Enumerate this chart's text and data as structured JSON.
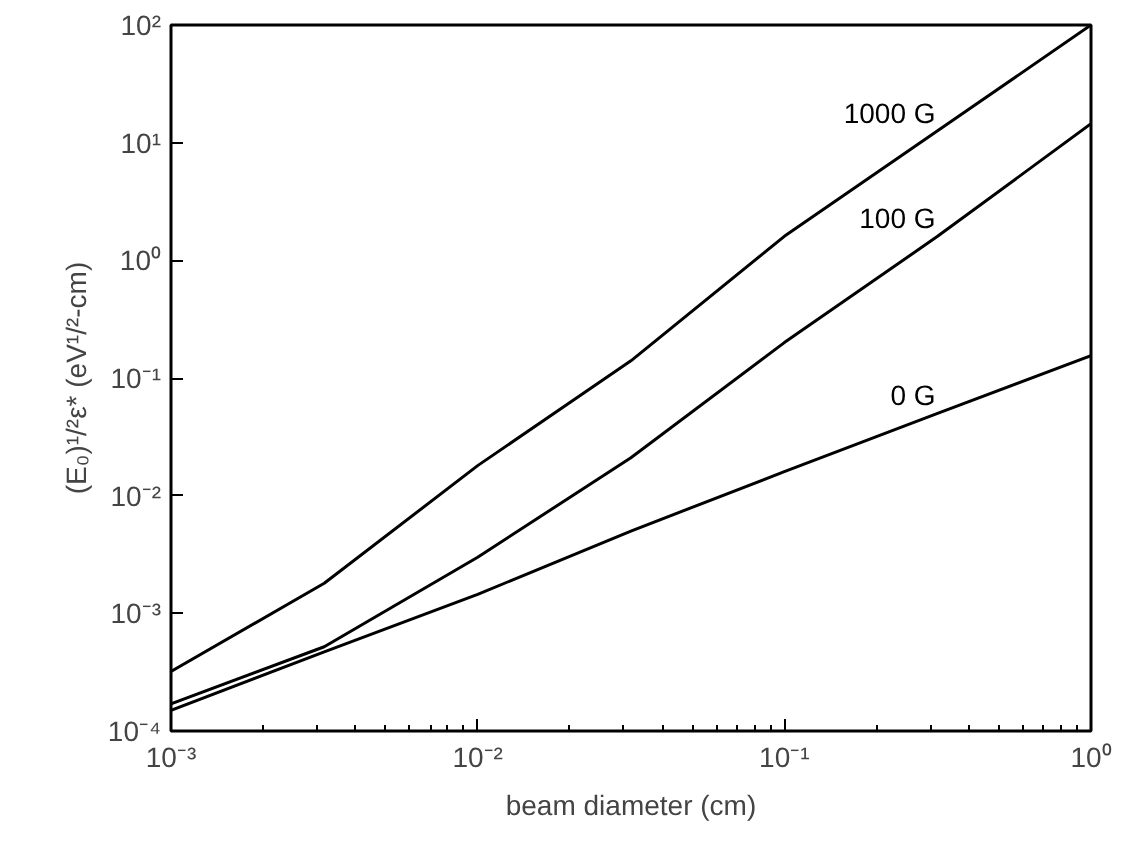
{
  "chart_data": {
    "type": "line",
    "xlabel": "beam diameter (cm)",
    "ylabel": "(E₀)¹/²ε* (eV¹/²-cm)",
    "x": [
      0.001,
      0.00316,
      0.01,
      0.0316,
      0.1,
      0.316,
      1
    ],
    "series": [
      {
        "name": "1000 G",
        "color": "#000000",
        "values": [
          0.00032,
          0.0018,
          0.018,
          0.14,
          1.6,
          12.6,
          100
        ]
      },
      {
        "name": "100 G",
        "color": "#000000",
        "values": [
          0.00017,
          0.00052,
          0.003,
          0.021,
          0.2,
          1.6,
          14.5
        ]
      },
      {
        "name": "0 G",
        "color": "#000000",
        "values": [
          0.00015,
          0.00047,
          0.00145,
          0.005,
          0.016,
          0.05,
          0.155
        ]
      }
    ],
    "log": "xy",
    "grid": false,
    "marker": "none",
    "line_style": "solid",
    "xlim": [
      0.001,
      1
    ],
    "ylim": [
      0.0001,
      100
    ],
    "xticks": [
      {
        "value": 0.001,
        "label": "10⁻³"
      },
      {
        "value": 0.01,
        "label": "10⁻²"
      },
      {
        "value": 0.1,
        "label": "10⁻¹"
      },
      {
        "value": 1,
        "label": "10⁰"
      }
    ],
    "yticks": [
      {
        "value": 0.0001,
        "label": "10⁻⁴"
      },
      {
        "value": 0.001,
        "label": "10⁻³"
      },
      {
        "value": 0.01,
        "label": "10⁻²"
      },
      {
        "value": 0.1,
        "label": "10⁻¹"
      },
      {
        "value": 1,
        "label": "10⁰"
      },
      {
        "value": 10,
        "label": "10¹"
      },
      {
        "value": 100,
        "label": "10²"
      }
    ]
  }
}
